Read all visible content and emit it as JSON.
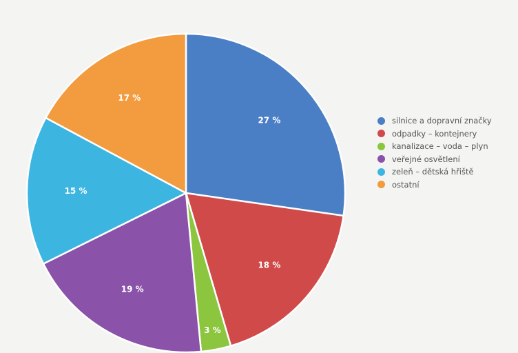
{
  "chart_data": {
    "type": "pie",
    "title": "",
    "series": [
      {
        "categories": [
          "silnice a dopravní značky",
          "odpadky – kontejnery",
          "kanalizace – voda – plyn",
          "veřejné osvětlení",
          "zeleň – dětská hřiště",
          "ostatní"
        ],
        "values": [
          27,
          18,
          3,
          19,
          15,
          17
        ],
        "labels": [
          "27 %",
          "18 %",
          "3 %",
          "19 %",
          "15 %",
          "17 %"
        ]
      }
    ],
    "colors": [
      "#4a7fc6",
      "#d04a4a",
      "#8cc63f",
      "#8a52a8",
      "#3cb6e0",
      "#f29b3f"
    ],
    "legend_position": "right",
    "start_angle": "top, clockwise"
  }
}
